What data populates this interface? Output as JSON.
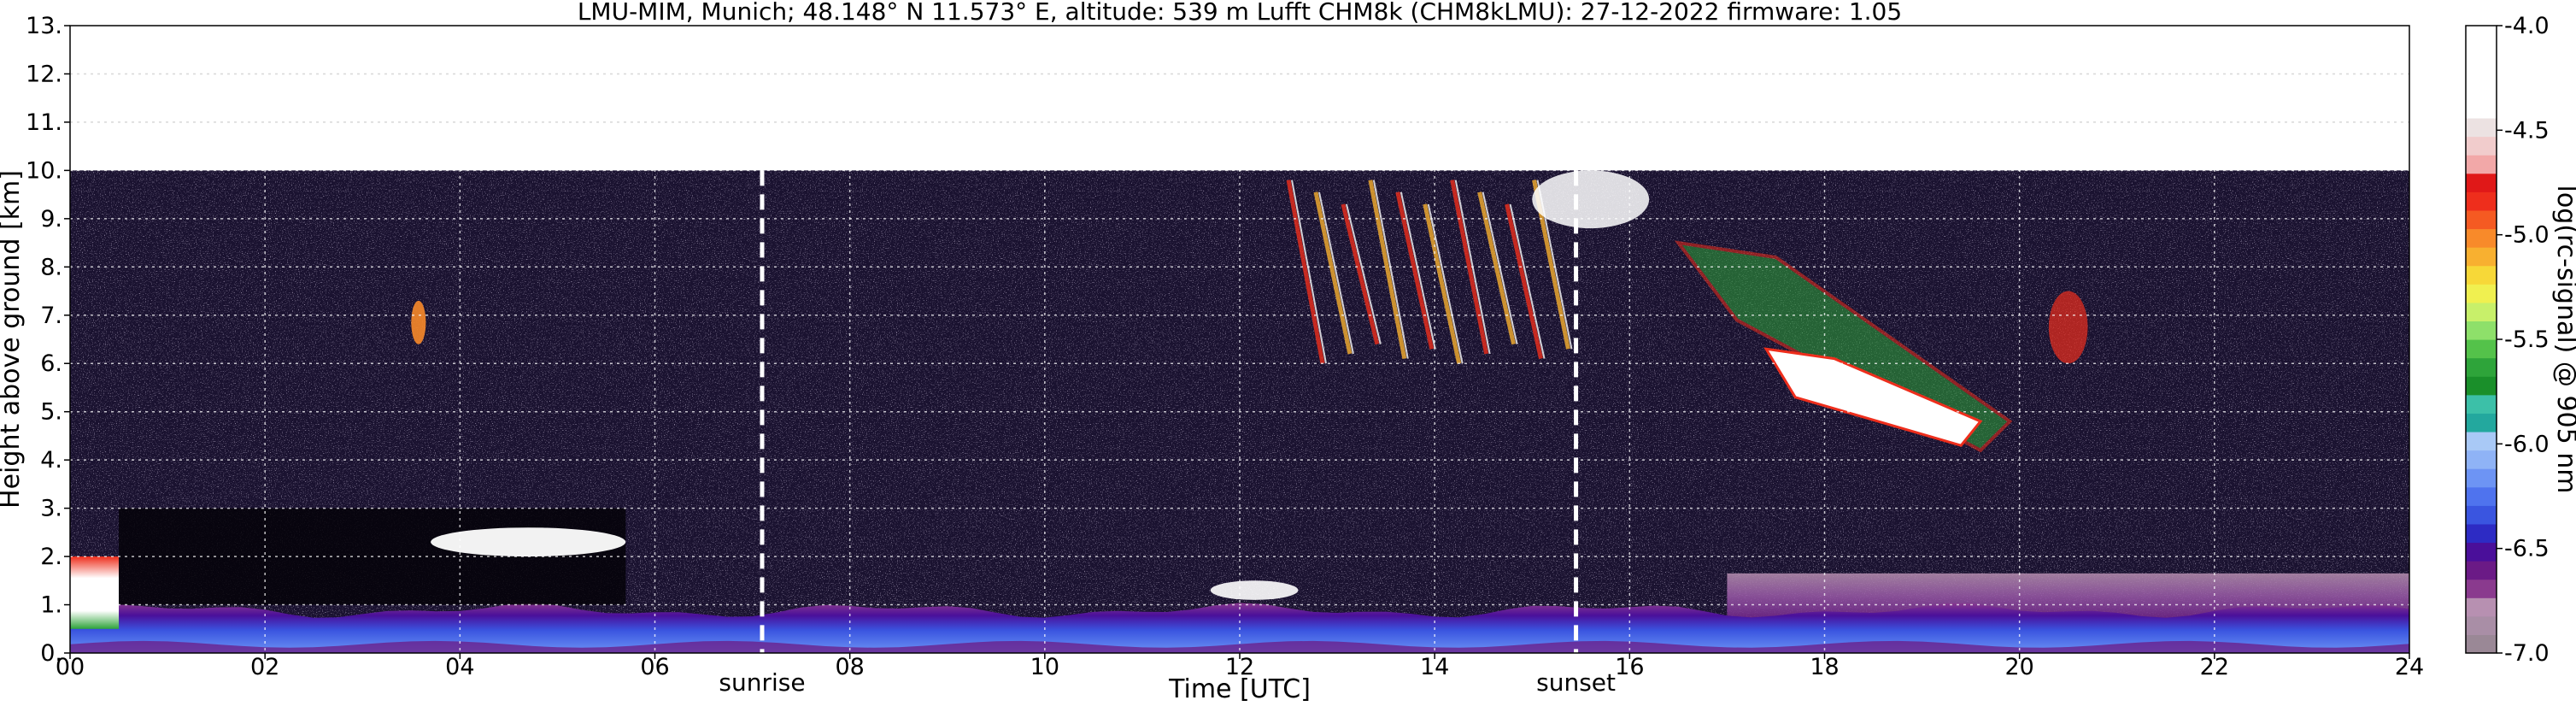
{
  "chart_data": {
    "type": "heatmap",
    "title": "LMU-MIM, Munich; 48.148° N 11.573° E, altitude: 539 m    Lufft CHM8k (CHM8kLMU): 27-12-2022    firmware: 1.05",
    "xlabel": "Time [UTC]",
    "ylabel": "Height above ground [km]",
    "xlim": [
      0,
      24
    ],
    "ylim": [
      0,
      13
    ],
    "x_ticks": [
      {
        "value": 0,
        "label": "00"
      },
      {
        "value": 2,
        "label": "02"
      },
      {
        "value": 4,
        "label": "04"
      },
      {
        "value": 6,
        "label": "06"
      },
      {
        "value": 8,
        "label": "08"
      },
      {
        "value": 10,
        "label": "10"
      },
      {
        "value": 12,
        "label": "12"
      },
      {
        "value": 14,
        "label": "14"
      },
      {
        "value": 16,
        "label": "16"
      },
      {
        "value": 18,
        "label": "18"
      },
      {
        "value": 20,
        "label": "20"
      },
      {
        "value": 22,
        "label": "22"
      },
      {
        "value": 24,
        "label": "24"
      }
    ],
    "y_ticks": [
      {
        "value": 0,
        "label": "0."
      },
      {
        "value": 1,
        "label": "1."
      },
      {
        "value": 2,
        "label": "2."
      },
      {
        "value": 3,
        "label": "3."
      },
      {
        "value": 4,
        "label": "4."
      },
      {
        "value": 5,
        "label": "5."
      },
      {
        "value": 6,
        "label": "6."
      },
      {
        "value": 7,
        "label": "7."
      },
      {
        "value": 8,
        "label": "8."
      },
      {
        "value": 9,
        "label": "9."
      },
      {
        "value": 10,
        "label": "10."
      },
      {
        "value": 11,
        "label": "11."
      },
      {
        "value": 12,
        "label": "12."
      },
      {
        "value": 13,
        "label": "13."
      }
    ],
    "grid": true,
    "data_ceiling_km": 10,
    "events": [
      {
        "name": "sunrise",
        "label": "sunrise",
        "time": 7.1
      },
      {
        "name": "sunset",
        "label": "sunset",
        "time": 15.45
      }
    ],
    "colorbar": {
      "label": "log(rc-signal) @ 905 nm",
      "range": [
        -7.0,
        -4.0
      ],
      "ticks": [
        {
          "value": -4.0,
          "label": "-4.0"
        },
        {
          "value": -4.5,
          "label": "-4.5"
        },
        {
          "value": -5.0,
          "label": "-5.0"
        },
        {
          "value": -5.5,
          "label": "-5.5"
        },
        {
          "value": -6.0,
          "label": "-6.0"
        },
        {
          "value": -6.5,
          "label": "-6.5"
        },
        {
          "value": -7.0,
          "label": "-7.0"
        }
      ],
      "colors": [
        "#9a8896",
        "#a98ea6",
        "#b790b1",
        "#8a3a8e",
        "#6b1a86",
        "#4a0f9a",
        "#2d2bc4",
        "#3a55e0",
        "#4f73ee",
        "#6d94f4",
        "#8fb3f6",
        "#a9c9f6",
        "#23a89e",
        "#3cc0a8",
        "#1a8f2a",
        "#2ea43a",
        "#54c24a",
        "#8ee06a",
        "#c8f06a",
        "#f0f050",
        "#f7d838",
        "#f8b030",
        "#f88a2a",
        "#f55a22",
        "#ee2e1c",
        "#e01818",
        "#f2a8a8",
        "#f1cccc",
        "#ece2e2",
        "#ffffff",
        "#ffffff",
        "#ffffff",
        "#ffffff",
        "#ffffff"
      ]
    },
    "features": [
      {
        "name": "boundary-layer",
        "t_start": 0,
        "t_end": 24,
        "h_bottom": 0,
        "h_top": 1.0
      },
      {
        "name": "night-residual-layer",
        "t_start": 17,
        "t_end": 24,
        "h_bottom": 0.6,
        "h_top": 1.65
      },
      {
        "name": "early-low-cloud",
        "t_start": 0,
        "t_end": 0.5,
        "h_bottom": 0.5,
        "h_top": 2.0
      },
      {
        "name": "morning-cloud-layer",
        "t_start": 3.7,
        "t_end": 5.7,
        "h_bottom": 2.0,
        "h_top": 2.6
      },
      {
        "name": "midday-cloud-layer",
        "t_start": 11.7,
        "t_end": 12.6,
        "h_bottom": 1.1,
        "h_top": 1.5
      },
      {
        "name": "cirrus-streaks",
        "t_start": 12.5,
        "t_end": 15.3,
        "h_bottom": 6.0,
        "h_top": 9.8
      },
      {
        "name": "cirrus-top",
        "t_start": 15.0,
        "t_end": 16.2,
        "h_bottom": 8.8,
        "h_top": 10.0
      },
      {
        "name": "descending-cirrus",
        "t_start": 16.5,
        "t_end": 19.9,
        "h_bottom": 4.2,
        "h_top": 8.5
      },
      {
        "name": "dense-cloud-core",
        "t_start": 17.4,
        "t_end": 19.6,
        "h_bottom": 4.3,
        "h_top": 6.3
      },
      {
        "name": "isolated-cirrus",
        "t_start": 20.3,
        "t_end": 20.7,
        "h_bottom": 6.0,
        "h_top": 7.5
      },
      {
        "name": "small-cloud",
        "t_start": 3.5,
        "t_end": 3.65,
        "h_bottom": 6.4,
        "h_top": 7.3
      }
    ]
  }
}
